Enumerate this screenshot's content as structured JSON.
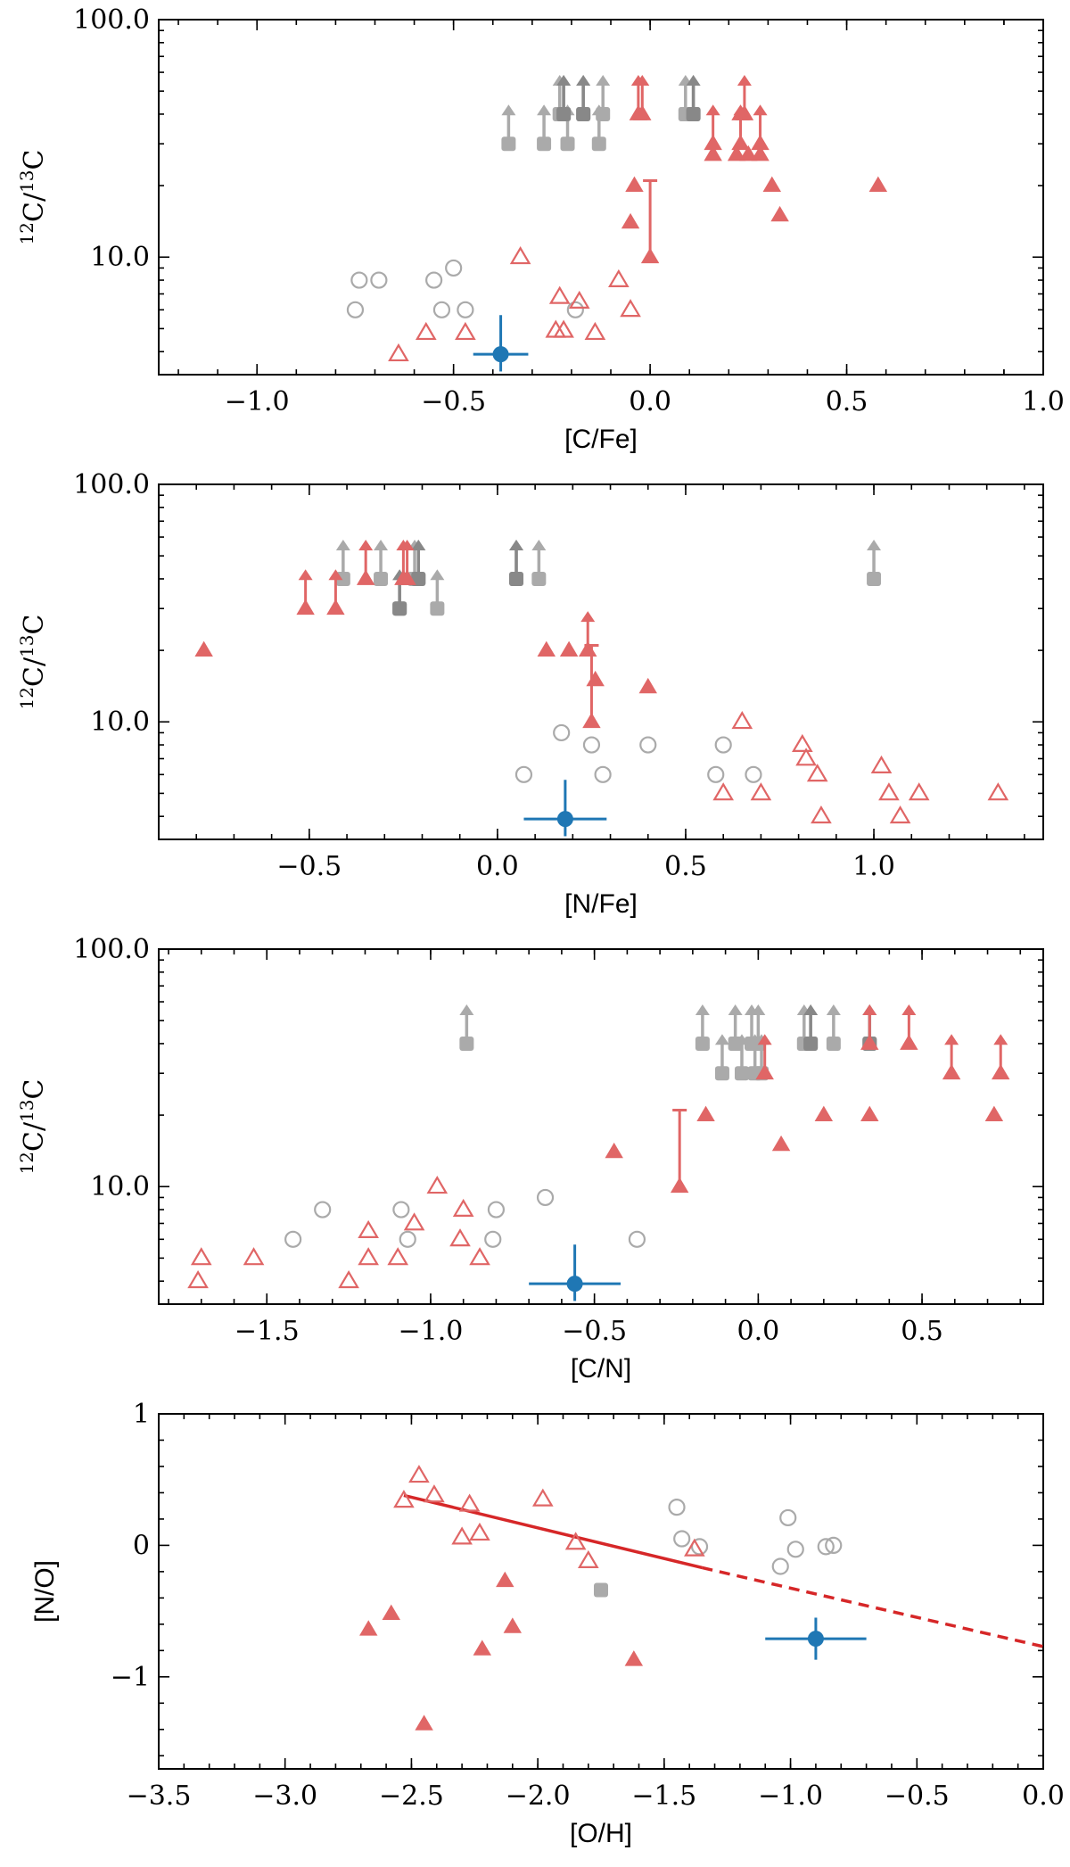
{
  "colors": {
    "red": "#d62728",
    "red_fill": "#e06666",
    "grey": "#aaaaaa",
    "grey_dark": "#888888",
    "blue": "#1f77b4"
  },
  "chart_data": [
    {
      "type": "scatter",
      "name": "panel-cfe",
      "xlabel": "[C/Fe]",
      "ylabel_main": "12C/13C",
      "ylabel_parts": [
        "12",
        "C/",
        "13",
        "C"
      ],
      "xlim": [
        -1.25,
        1.0
      ],
      "ylim": [
        3.2,
        100
      ],
      "yscale": "log",
      "xticks": [
        -1.0,
        -0.5,
        0.0,
        0.5,
        1.0
      ],
      "xtick_labels": [
        "−1.0",
        "−0.5",
        "0.0",
        "0.5",
        "1.0"
      ],
      "yticks": [
        10,
        100
      ],
      "ytick_labels": [
        "10.0",
        "100.0"
      ],
      "grey_open_circles": [
        [
          -0.75,
          6
        ],
        [
          -0.74,
          8
        ],
        [
          -0.69,
          8
        ],
        [
          -0.55,
          8
        ],
        [
          -0.53,
          6
        ],
        [
          -0.5,
          9
        ],
        [
          -0.47,
          6
        ],
        [
          -0.19,
          6
        ]
      ],
      "red_open_triangles": [
        [
          -0.64,
          3.9
        ],
        [
          -0.57,
          4.8
        ],
        [
          -0.47,
          4.8
        ],
        [
          -0.33,
          10
        ],
        [
          -0.24,
          4.9
        ],
        [
          -0.23,
          6.8
        ],
        [
          -0.22,
          4.9
        ],
        [
          -0.18,
          6.5
        ],
        [
          -0.14,
          4.8
        ],
        [
          -0.08,
          8
        ],
        [
          -0.05,
          6
        ]
      ],
      "red_filled_triangles": [
        [
          -0.05,
          14
        ],
        [
          -0.04,
          20
        ],
        [
          0.16,
          27
        ],
        [
          0.22,
          27
        ],
        [
          0.23,
          40
        ],
        [
          0.25,
          27
        ],
        [
          0.28,
          27
        ],
        [
          0.31,
          20
        ],
        [
          0.33,
          15
        ],
        [
          0.58,
          20
        ]
      ],
      "red_lower_limits": [
        [
          -0.03,
          40
        ],
        [
          -0.02,
          40
        ],
        [
          0.16,
          30
        ],
        [
          0.23,
          30
        ],
        [
          0.24,
          40
        ],
        [
          0.28,
          30
        ]
      ],
      "red_ranges": [
        [
          0.0,
          10,
          21
        ]
      ],
      "grey_lower_limits": [
        [
          -0.36,
          30
        ],
        [
          -0.27,
          30
        ],
        [
          -0.23,
          40
        ],
        [
          -0.22,
          40
        ],
        [
          -0.21,
          30
        ],
        [
          -0.17,
          40
        ],
        [
          -0.13,
          30
        ],
        [
          -0.12,
          40
        ],
        [
          0.09,
          40
        ],
        [
          0.11,
          40
        ]
      ],
      "grey_dark_lower_limits": [
        [
          -0.22,
          40
        ],
        [
          -0.17,
          40
        ],
        [
          0.11,
          40
        ]
      ],
      "blue_point": {
        "x": -0.38,
        "y": 3.9,
        "xerr": 0.07,
        "yerr_low": 0.6,
        "yerr_high": 1.8
      }
    },
    {
      "type": "scatter",
      "name": "panel-nfe",
      "xlabel": "[N/Fe]",
      "ylabel_main": "12C/13C",
      "ylabel_parts": [
        "12",
        "C/",
        "13",
        "C"
      ],
      "xlim": [
        -0.9,
        1.45
      ],
      "ylim": [
        3.2,
        100
      ],
      "yscale": "log",
      "xticks": [
        -0.5,
        0.0,
        0.5,
        1.0
      ],
      "xtick_labels": [
        "−0.5",
        "0.0",
        "0.5",
        "1.0"
      ],
      "yticks": [
        10,
        100
      ],
      "ytick_labels": [
        "10.0",
        "100.0"
      ],
      "grey_open_circles": [
        [
          0.07,
          6
        ],
        [
          0.17,
          9
        ],
        [
          0.25,
          8
        ],
        [
          0.28,
          6
        ],
        [
          0.4,
          8
        ],
        [
          0.58,
          6
        ],
        [
          0.6,
          8
        ],
        [
          0.68,
          6
        ]
      ],
      "red_open_triangles": [
        [
          0.6,
          5
        ],
        [
          0.65,
          10
        ],
        [
          0.7,
          5
        ],
        [
          0.81,
          8
        ],
        [
          0.82,
          7
        ],
        [
          0.85,
          6
        ],
        [
          0.86,
          4
        ],
        [
          1.02,
          6.5
        ],
        [
          1.04,
          5
        ],
        [
          1.07,
          4
        ],
        [
          1.12,
          5
        ],
        [
          1.33,
          5
        ]
      ],
      "red_filled_triangles": [
        [
          -0.78,
          20
        ],
        [
          0.13,
          20
        ],
        [
          0.19,
          20
        ],
        [
          0.26,
          15
        ],
        [
          0.4,
          14
        ]
      ],
      "red_lower_limits": [
        [
          -0.51,
          30
        ],
        [
          -0.43,
          30
        ],
        [
          -0.35,
          40
        ],
        [
          -0.25,
          40
        ],
        [
          -0.24,
          40
        ],
        [
          0.24,
          20
        ]
      ],
      "red_ranges": [
        [
          0.25,
          10,
          21
        ]
      ],
      "grey_lower_limits": [
        [
          -0.41,
          40
        ],
        [
          -0.31,
          40
        ],
        [
          -0.26,
          30
        ],
        [
          -0.22,
          40
        ],
        [
          -0.21,
          40
        ],
        [
          -0.16,
          30
        ],
        [
          0.05,
          40
        ],
        [
          0.11,
          40
        ],
        [
          1.0,
          40
        ]
      ],
      "grey_dark_lower_limits": [
        [
          -0.26,
          30
        ],
        [
          -0.21,
          40
        ],
        [
          0.05,
          40
        ]
      ],
      "blue_point": {
        "x": 0.18,
        "y": 3.9,
        "xerr": 0.11,
        "yerr_low": 0.6,
        "yerr_high": 1.8
      }
    },
    {
      "type": "scatter",
      "name": "panel-cn",
      "xlabel": "[C/N]",
      "ylabel_main": "12C/13C",
      "ylabel_parts": [
        "12",
        "C/",
        "13",
        "C"
      ],
      "xlim": [
        -1.83,
        0.87
      ],
      "ylim": [
        3.2,
        100
      ],
      "yscale": "log",
      "xticks": [
        -1.5,
        -1.0,
        -0.5,
        0.0,
        0.5
      ],
      "xtick_labels": [
        "−1.5",
        "−1.0",
        "−0.5",
        "0.0",
        "0.5"
      ],
      "yticks": [
        10,
        100
      ],
      "ytick_labels": [
        "10.0",
        "100.0"
      ],
      "grey_open_circles": [
        [
          -1.42,
          6
        ],
        [
          -1.33,
          8
        ],
        [
          -1.09,
          8
        ],
        [
          -1.07,
          6
        ],
        [
          -0.8,
          8
        ],
        [
          -0.81,
          6
        ],
        [
          -0.65,
          9
        ],
        [
          -0.37,
          6
        ]
      ],
      "red_open_triangles": [
        [
          -1.7,
          5
        ],
        [
          -1.71,
          4
        ],
        [
          -1.54,
          5
        ],
        [
          -1.25,
          4
        ],
        [
          -1.19,
          6.5
        ],
        [
          -1.19,
          5
        ],
        [
          -1.05,
          7
        ],
        [
          -1.1,
          5
        ],
        [
          -0.98,
          10
        ],
        [
          -0.9,
          8
        ],
        [
          -0.91,
          6
        ],
        [
          -0.85,
          5
        ]
      ],
      "red_filled_triangles": [
        [
          -0.44,
          14
        ],
        [
          -0.16,
          20
        ],
        [
          0.07,
          15
        ],
        [
          0.2,
          20
        ],
        [
          0.34,
          20
        ],
        [
          0.72,
          20
        ]
      ],
      "red_lower_limits": [
        [
          0.02,
          30
        ],
        [
          0.34,
          40
        ],
        [
          0.46,
          40
        ],
        [
          0.59,
          30
        ],
        [
          0.74,
          30
        ]
      ],
      "red_ranges": [
        [
          -0.24,
          10,
          21
        ]
      ],
      "grey_lower_limits": [
        [
          -0.89,
          40
        ],
        [
          -0.17,
          40
        ],
        [
          -0.11,
          30
        ],
        [
          -0.07,
          40
        ],
        [
          -0.05,
          30
        ],
        [
          -0.02,
          40
        ],
        [
          0.0,
          40
        ],
        [
          -0.01,
          30
        ],
        [
          0.01,
          30
        ],
        [
          0.14,
          40
        ],
        [
          0.16,
          40
        ],
        [
          0.23,
          40
        ],
        [
          0.34,
          40
        ]
      ],
      "grey_dark_lower_limits": [
        [
          0.16,
          40
        ],
        [
          0.34,
          40
        ]
      ],
      "blue_point": {
        "x": -0.56,
        "y": 3.9,
        "xerr": 0.14,
        "yerr_low": 0.6,
        "yerr_high": 1.8
      }
    },
    {
      "type": "scatter",
      "name": "panel-no-oh",
      "xlabel": "[O/H]",
      "ylabel": "[N/O]",
      "xlim": [
        -3.5,
        0.0
      ],
      "ylim": [
        -1.7,
        1.0
      ],
      "yscale": "linear",
      "xticks": [
        -3.5,
        -3.0,
        -2.5,
        -2.0,
        -1.5,
        -1.0,
        -0.5,
        0.0
      ],
      "xtick_labels": [
        "−3.5",
        "−3.0",
        "−2.5",
        "−2.0",
        "−1.5",
        "−1.0",
        "−0.5",
        "0.0"
      ],
      "yticks": [
        -1,
        0,
        1
      ],
      "ytick_labels": [
        "−1",
        "0",
        "1"
      ],
      "grey_open_circles": [
        [
          -1.45,
          0.29
        ],
        [
          -1.43,
          0.05
        ],
        [
          -1.36,
          -0.01
        ],
        [
          -1.01,
          0.21
        ],
        [
          -0.98,
          -0.03
        ],
        [
          -1.04,
          -0.16
        ],
        [
          -0.86,
          -0.01
        ],
        [
          -0.83,
          0.0
        ]
      ],
      "red_open_triangles": [
        [
          -2.53,
          0.34
        ],
        [
          -2.47,
          0.53
        ],
        [
          -2.41,
          0.38
        ],
        [
          -2.3,
          0.06
        ],
        [
          -2.27,
          0.31
        ],
        [
          -2.23,
          0.09
        ],
        [
          -1.98,
          0.35
        ],
        [
          -1.85,
          0.02
        ],
        [
          -1.8,
          -0.12
        ],
        [
          -1.38,
          -0.03
        ]
      ],
      "red_filled_triangles": [
        [
          -2.67,
          -0.64
        ],
        [
          -2.58,
          -0.52
        ],
        [
          -2.45,
          -1.36
        ],
        [
          -2.22,
          -0.79
        ],
        [
          -2.13,
          -0.27
        ],
        [
          -2.1,
          -0.62
        ],
        [
          -1.62,
          -0.87
        ]
      ],
      "grey_filled_squares": [
        [
          -1.75,
          -0.34
        ]
      ],
      "fit_line_solid": [
        [
          -2.53,
          0.38
        ],
        [
          -1.35,
          -0.17
        ]
      ],
      "fit_line_dashed": [
        [
          -1.35,
          -0.17
        ],
        [
          0.0,
          -0.77
        ]
      ],
      "blue_point": {
        "x": -0.9,
        "y": -0.71,
        "xerr": 0.2,
        "yerr_low": 0.16,
        "yerr_high": 0.16
      }
    }
  ]
}
